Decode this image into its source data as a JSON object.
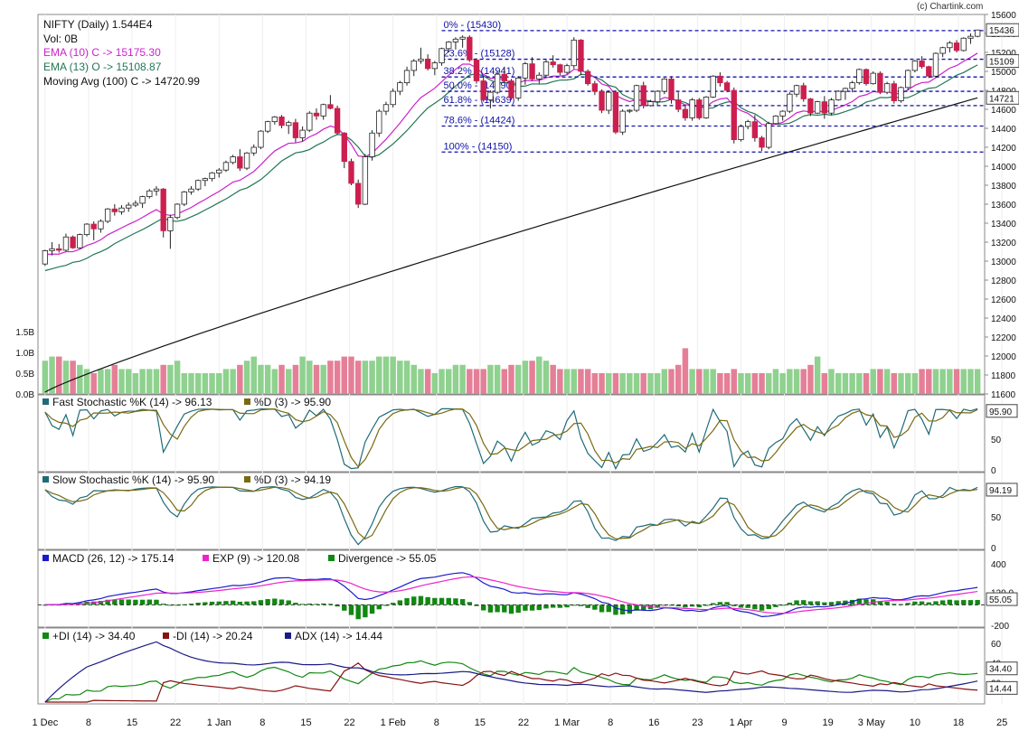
{
  "copyright": "(c) Chartink.com",
  "header": {
    "title": "NIFTY (Daily) 1.544E4",
    "volume": "Vol: 0B",
    "ema10": "EMA (10) C -> 15175.30",
    "ema13": "EMA (13) O -> 15108.87",
    "ma100": "Moving Avg (100) C -> 14720.99"
  },
  "colors": {
    "up": "#ffffff",
    "down": "#cc1f4f",
    "volUp": "#8fd18f",
    "volDown": "#e57f97",
    "ema10": "#cc22cc",
    "ema13": "#227755",
    "ma100": "#111111",
    "fib": "#1111aa",
    "fastK": "#1f6b78",
    "fastD": "#7a6a10",
    "macd": "#1a1acc",
    "exp": "#ee22cc",
    "div": "#118811",
    "pdi": "#118811",
    "mdi": "#881111",
    "adx": "#1a1a88"
  },
  "chart_data": {
    "type": "candlestick",
    "x_axis_labels": [
      "1 Dec",
      "8",
      "15",
      "22",
      "1 Jan",
      "8",
      "15",
      "22",
      "1 Feb",
      "8",
      "15",
      "22",
      "1 Mar",
      "8",
      "16",
      "23",
      "1 Apr",
      "9",
      "19",
      "3 May",
      "10",
      "18",
      "25"
    ],
    "x_axis_label_days": [
      0,
      5,
      10,
      15,
      20,
      25,
      30,
      35,
      40,
      45,
      50,
      55,
      60,
      65,
      70,
      75,
      80,
      85,
      90,
      95,
      100,
      105,
      110
    ],
    "price_axis": {
      "ylim": [
        11600,
        15600
      ],
      "ticks": [
        "15600",
        "15400",
        "15200",
        "15000",
        "14800",
        "14600",
        "14400",
        "14200",
        "14000",
        "13800",
        "13600",
        "13400",
        "13200",
        "13000",
        "12800",
        "12600",
        "12400",
        "12200",
        "12000",
        "11800",
        "11600"
      ]
    },
    "price_tags": [
      "15436",
      "15109",
      "14721"
    ],
    "volume_axis": {
      "ticks": [
        "1.5B",
        "1.0B",
        "0.5B",
        "0.0B"
      ]
    },
    "fibonacci": [
      {
        "label": "0% - (15430)",
        "value": 15430
      },
      {
        "label": "23.6% - (15128)",
        "value": 15128
      },
      {
        "label": "38.2% - (14941)",
        "value": 14941
      },
      {
        "label": "50.0% - (14790)",
        "value": 14790
      },
      {
        "label": "61.8% - (14639)",
        "value": 14639
      },
      {
        "label": "78.6% - (14424)",
        "value": 14424
      },
      {
        "label": "100% - (14150)",
        "value": 14150
      }
    ],
    "candles": [
      [
        12970,
        13120,
        12950,
        13110
      ],
      [
        13110,
        13200,
        13060,
        13130
      ],
      [
        13130,
        13180,
        13090,
        13115
      ],
      [
        13115,
        13290,
        13100,
        13255
      ],
      [
        13255,
        13270,
        13130,
        13140
      ],
      [
        13140,
        13290,
        13130,
        13280
      ],
      [
        13280,
        13400,
        13260,
        13390
      ],
      [
        13390,
        13420,
        13220,
        13340
      ],
      [
        13340,
        13440,
        13300,
        13420
      ],
      [
        13420,
        13560,
        13400,
        13550
      ],
      [
        13550,
        13600,
        13480,
        13520
      ],
      [
        13520,
        13590,
        13490,
        13560
      ],
      [
        13560,
        13620,
        13520,
        13590
      ],
      [
        13590,
        13640,
        13570,
        13610
      ],
      [
        13610,
        13690,
        13560,
        13680
      ],
      [
        13680,
        13760,
        13660,
        13740
      ],
      [
        13740,
        13790,
        13690,
        13760
      ],
      [
        13760,
        13770,
        13250,
        13320
      ],
      [
        13320,
        13490,
        13130,
        13460
      ],
      [
        13460,
        13610,
        13440,
        13600
      ],
      [
        13600,
        13740,
        13580,
        13730
      ],
      [
        13730,
        13790,
        13700,
        13760
      ],
      [
        13760,
        13860,
        13740,
        13850
      ],
      [
        13850,
        13880,
        13790,
        13870
      ],
      [
        13870,
        13940,
        13840,
        13930
      ],
      [
        13930,
        13980,
        13880,
        13960
      ],
      [
        13960,
        14060,
        13940,
        14040
      ],
      [
        14040,
        14120,
        14020,
        14100
      ],
      [
        14100,
        14180,
        13950,
        13980
      ],
      [
        13980,
        14150,
        13960,
        14140
      ],
      [
        14140,
        14230,
        14110,
        14200
      ],
      [
        14200,
        14380,
        14180,
        14370
      ],
      [
        14370,
        14480,
        14350,
        14470
      ],
      [
        14470,
        14530,
        14440,
        14520
      ],
      [
        14520,
        14540,
        14400,
        14430
      ],
      [
        14430,
        14480,
        14340,
        14460
      ],
      [
        14460,
        14500,
        14250,
        14300
      ],
      [
        14300,
        14420,
        14260,
        14380
      ],
      [
        14380,
        14580,
        14360,
        14560
      ],
      [
        14560,
        14610,
        14490,
        14530
      ],
      [
        14530,
        14660,
        14490,
        14650
      ],
      [
        14650,
        14750,
        14600,
        14610
      ],
      [
        14610,
        14640,
        14330,
        14350
      ],
      [
        14350,
        14360,
        13980,
        14050
      ],
      [
        14050,
        14080,
        13800,
        13820
      ],
      [
        13820,
        13860,
        13560,
        13600
      ],
      [
        13600,
        14130,
        13590,
        14100
      ],
      [
        14100,
        14380,
        14060,
        14350
      ],
      [
        14350,
        14600,
        14310,
        14580
      ],
      [
        14580,
        14680,
        14540,
        14650
      ],
      [
        14650,
        14820,
        14620,
        14790
      ],
      [
        14790,
        14900,
        14750,
        14880
      ],
      [
        14880,
        15050,
        14850,
        15010
      ],
      [
        15010,
        15130,
        14950,
        15110
      ],
      [
        15110,
        15250,
        15080,
        15130
      ],
      [
        15130,
        15180,
        15010,
        15030
      ],
      [
        15030,
        15110,
        14960,
        15090
      ],
      [
        15090,
        15250,
        15060,
        15240
      ],
      [
        15240,
        15320,
        15200,
        15310
      ],
      [
        15310,
        15360,
        15230,
        15340
      ],
      [
        15340,
        15380,
        15250,
        15360
      ],
      [
        15360,
        15380,
        15100,
        15120
      ],
      [
        15120,
        15140,
        14870,
        14900
      ],
      [
        14900,
        14950,
        14680,
        14700
      ],
      [
        14700,
        14800,
        14610,
        14780
      ],
      [
        14780,
        15000,
        14760,
        14970
      ],
      [
        14970,
        15050,
        14880,
        14900
      ],
      [
        14900,
        14920,
        14700,
        14720
      ],
      [
        14720,
        14950,
        14690,
        14930
      ],
      [
        14930,
        15100,
        14860,
        15080
      ],
      [
        15080,
        15150,
        14900,
        14920
      ],
      [
        14920,
        14990,
        14870,
        14960
      ],
      [
        14960,
        15130,
        14940,
        15100
      ],
      [
        15100,
        15170,
        15040,
        15070
      ],
      [
        15070,
        15080,
        14960,
        14990
      ],
      [
        14990,
        15080,
        14970,
        15060
      ],
      [
        15060,
        15360,
        15030,
        15330
      ],
      [
        15330,
        15340,
        14960,
        15000
      ],
      [
        15000,
        15020,
        14850,
        14870
      ],
      [
        14870,
        14900,
        14750,
        14790
      ],
      [
        14790,
        14810,
        14560,
        14590
      ],
      [
        14590,
        14800,
        14550,
        14780
      ],
      [
        14780,
        14800,
        14340,
        14360
      ],
      [
        14360,
        14600,
        14330,
        14580
      ],
      [
        14580,
        14600,
        14560,
        14590
      ],
      [
        14590,
        14860,
        14570,
        14850
      ],
      [
        14850,
        14890,
        14610,
        14640
      ],
      [
        14640,
        14700,
        14630,
        14680
      ],
      [
        14680,
        14800,
        14640,
        14790
      ],
      [
        14790,
        14930,
        14760,
        14920
      ],
      [
        14920,
        14950,
        14660,
        14700
      ],
      [
        14700,
        14780,
        14570,
        14600
      ],
      [
        14600,
        14640,
        14480,
        14510
      ],
      [
        14510,
        14720,
        14480,
        14700
      ],
      [
        14700,
        14720,
        14490,
        14510
      ],
      [
        14510,
        14740,
        14500,
        14730
      ],
      [
        14730,
        14960,
        14720,
        14950
      ],
      [
        14950,
        14990,
        14840,
        14880
      ],
      [
        14880,
        14900,
        14780,
        14800
      ],
      [
        14800,
        14830,
        14240,
        14280
      ],
      [
        14280,
        14440,
        14260,
        14420
      ],
      [
        14420,
        14490,
        14390,
        14470
      ],
      [
        14470,
        14540,
        14260,
        14300
      ],
      [
        14300,
        14320,
        14160,
        14200
      ],
      [
        14200,
        14470,
        14180,
        14450
      ],
      [
        14450,
        14540,
        14440,
        14530
      ],
      [
        14530,
        14590,
        14480,
        14580
      ],
      [
        14580,
        14780,
        14560,
        14760
      ],
      [
        14760,
        14860,
        14730,
        14850
      ],
      [
        14850,
        14880,
        14680,
        14710
      ],
      [
        14710,
        14720,
        14530,
        14560
      ],
      [
        14560,
        14690,
        14550,
        14680
      ],
      [
        14680,
        14740,
        14500,
        14560
      ],
      [
        14560,
        14720,
        14540,
        14700
      ],
      [
        14700,
        14800,
        14690,
        14790
      ],
      [
        14790,
        14830,
        14700,
        14820
      ],
      [
        14820,
        14900,
        14780,
        14880
      ],
      [
        14880,
        15030,
        14860,
        15020
      ],
      [
        15020,
        15030,
        14850,
        14870
      ],
      [
        14870,
        15000,
        14860,
        14980
      ],
      [
        14980,
        15000,
        14760,
        14780
      ],
      [
        14780,
        14890,
        14760,
        14870
      ],
      [
        14870,
        14900,
        14660,
        14690
      ],
      [
        14690,
        14840,
        14670,
        14830
      ],
      [
        14830,
        15020,
        14800,
        15010
      ],
      [
        15010,
        15120,
        14990,
        15110
      ],
      [
        15110,
        15160,
        15030,
        15050
      ],
      [
        15050,
        15060,
        14930,
        14950
      ],
      [
        14950,
        15200,
        14930,
        15190
      ],
      [
        15190,
        15260,
        15150,
        15250
      ],
      [
        15250,
        15320,
        15200,
        15300
      ],
      [
        15300,
        15330,
        15200,
        15220
      ],
      [
        15220,
        15360,
        15210,
        15350
      ],
      [
        15350,
        15400,
        15290,
        15370
      ],
      [
        15370,
        15440,
        15360,
        15436
      ]
    ],
    "volume_values": [
      0.8,
      0.9,
      0.9,
      0.8,
      0.8,
      0.7,
      0.6,
      0.5,
      0.6,
      0.6,
      0.7,
      0.6,
      0.6,
      0.5,
      0.6,
      0.6,
      0.6,
      0.7,
      0.7,
      0.8,
      0.5,
      0.5,
      0.5,
      0.5,
      0.5,
      0.5,
      0.6,
      0.6,
      0.7,
      0.8,
      0.9,
      0.7,
      0.7,
      0.6,
      0.7,
      0.6,
      0.7,
      0.9,
      0.8,
      0.7,
      0.7,
      0.8,
      0.8,
      0.9,
      0.9,
      0.8,
      0.8,
      0.8,
      0.9,
      0.9,
      0.9,
      0.8,
      0.8,
      0.7,
      0.6,
      0.6,
      0.5,
      0.6,
      0.6,
      0.7,
      0.7,
      0.6,
      0.6,
      0.6,
      0.7,
      0.7,
      0.6,
      0.7,
      0.7,
      0.8,
      0.8,
      0.9,
      0.8,
      0.7,
      0.6,
      0.6,
      0.6,
      0.6,
      0.6,
      0.5,
      0.5,
      0.5,
      0.5,
      0.5,
      0.5,
      0.5,
      0.5,
      0.5,
      0.5,
      0.6,
      0.6,
      0.7,
      1.1,
      0.6,
      0.6,
      0.6,
      0.6,
      0.5,
      0.5,
      0.6,
      0.5,
      0.5,
      0.5,
      0.5,
      0.5,
      0.6,
      0.5,
      0.6,
      0.6,
      0.6,
      0.7,
      0.9,
      0.5,
      0.6,
      0.5,
      0.5,
      0.5,
      0.5,
      0.5,
      0.6,
      0.6,
      0.6,
      0.5,
      0.5,
      0.5,
      0.5,
      0.6,
      0.6,
      0.6,
      0.6,
      0.6,
      0.6,
      0.6,
      0.6,
      0.6,
      0.7,
      0.6,
      0.6,
      0.6,
      0.6,
      0.6,
      0.6,
      0.6
    ],
    "stoch_fast": {
      "label": "Fast Stochastic %K (14) -> 96.13",
      "label_d": "%D (3) -> 95.90",
      "ticks": [
        "100",
        "50",
        "0"
      ],
      "tag": "95.90",
      "ylim": [
        0,
        100
      ]
    },
    "stoch_slow": {
      "label": "Slow Stochastic %K (14) -> 95.90",
      "label_d": "%D (3) -> 94.19",
      "ticks": [
        "100",
        "50",
        "0"
      ],
      "tag": "94.19",
      "ylim": [
        0,
        100
      ]
    },
    "macd": {
      "label": "MACD (26, 12) -> 175.14",
      "label_exp": "EXP (9) -> 120.08",
      "label_div": "Divergence -> 55.05",
      "ticks": [
        "400",
        "120.0",
        "-200"
      ],
      "tag": "55.05",
      "ylim": [
        -200,
        400
      ]
    },
    "dmi": {
      "label_pdi": "+DI (14) -> 34.40",
      "label_mdi": "-DI (14) -> 20.24",
      "label_adx": "ADX (14) -> 14.44",
      "ticks": [
        "60",
        "40",
        "20"
      ],
      "tags": [
        "34.40",
        "14.44"
      ],
      "ylim": [
        0,
        60
      ]
    }
  }
}
